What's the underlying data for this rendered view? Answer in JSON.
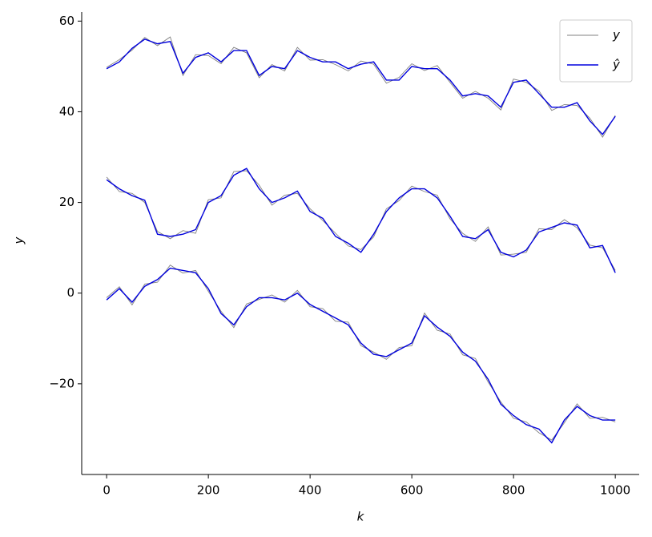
{
  "chart_data": {
    "type": "line",
    "x_label": "k",
    "y_label": "y",
    "x": [
      0,
      25,
      50,
      75,
      100,
      125,
      150,
      175,
      200,
      225,
      250,
      275,
      300,
      325,
      350,
      375,
      400,
      425,
      450,
      475,
      500,
      525,
      550,
      575,
      600,
      625,
      650,
      675,
      700,
      725,
      750,
      775,
      800,
      825,
      850,
      875,
      900,
      925,
      950,
      975,
      1000
    ],
    "series": [
      {
        "name": "y",
        "color": "#808080",
        "values": [
          [
            49.8,
            51.5,
            53.6,
            56.4,
            54.6,
            56.5,
            48.0,
            52.6,
            52.4,
            50.6,
            54.2,
            53.0,
            47.5,
            50.4,
            49.0,
            54.2,
            51.4,
            51.5,
            50.4,
            49.0,
            51.2,
            50.5,
            46.3,
            47.6,
            50.6,
            49.1,
            50.2,
            46.5,
            43.0,
            44.5,
            43.0,
            40.4,
            47.2,
            46.5,
            44.6,
            40.3,
            41.6,
            41.4,
            38.6,
            34.4,
            39.2
          ],
          [
            25.6,
            22.4,
            22.0,
            20.0,
            13.6,
            12.0,
            13.8,
            13.2,
            20.6,
            21.0,
            26.8,
            27.0,
            23.8,
            19.4,
            21.6,
            22.0,
            18.6,
            16.0,
            13.2,
            10.4,
            9.6,
            12.4,
            18.6,
            20.4,
            23.6,
            22.4,
            21.6,
            16.4,
            13.2,
            11.4,
            14.6,
            8.4,
            8.6,
            9.0,
            14.2,
            14.0,
            16.2,
            14.4,
            10.6,
            10.0,
            5.0
          ],
          [
            -1.0,
            1.4,
            -2.6,
            2.0,
            2.4,
            6.2,
            4.4,
            5.0,
            0.4,
            -4.0,
            -7.6,
            -2.4,
            -1.4,
            -0.4,
            -2.0,
            0.6,
            -3.0,
            -3.4,
            -6.2,
            -6.4,
            -11.6,
            -13.0,
            -14.6,
            -12.0,
            -11.6,
            -4.4,
            -8.2,
            -9.0,
            -13.6,
            -14.4,
            -19.6,
            -24.0,
            -27.6,
            -28.4,
            -30.8,
            -32.4,
            -28.6,
            -24.4,
            -27.6,
            -27.4,
            -28.4
          ]
        ]
      },
      {
        "name": "ŷ",
        "color": "#0000dd",
        "values": [
          [
            49.5,
            51,
            54,
            56,
            55,
            55.5,
            48.5,
            52,
            53,
            51,
            53.5,
            53.5,
            48,
            50,
            49.5,
            53.5,
            52,
            51,
            51,
            49.5,
            50.5,
            51,
            47,
            47,
            50,
            49.5,
            49.5,
            47,
            43.5,
            44,
            43.5,
            41,
            46.5,
            47,
            44,
            41,
            41,
            42,
            38,
            35,
            39
          ],
          [
            25,
            23,
            21.5,
            20.5,
            13,
            12.5,
            13,
            14,
            20,
            21.5,
            26,
            27.5,
            23,
            20,
            21,
            22.5,
            18,
            16.5,
            12.5,
            11,
            9,
            13,
            18,
            21,
            23,
            23,
            21,
            17,
            12.5,
            12,
            14,
            9,
            8,
            9.5,
            13.5,
            14.5,
            15.5,
            15,
            10,
            10.5,
            4.5
          ],
          [
            -1.5,
            1,
            -2,
            1.5,
            3,
            5.5,
            5,
            4.5,
            1,
            -4.5,
            -7,
            -3,
            -1,
            -1,
            -1.5,
            0,
            -2.5,
            -4,
            -5.5,
            -7,
            -11,
            -13.5,
            -14,
            -12.5,
            -11,
            -5,
            -7.5,
            -9.5,
            -13,
            -15,
            -19,
            -24.5,
            -27,
            -29,
            -30,
            -33,
            -28,
            -25,
            -27,
            -28,
            -28
          ]
        ]
      }
    ],
    "xlim": [
      -49,
      1047
    ],
    "ylim": [
      -40,
      62
    ],
    "xticks": [
      0,
      200,
      400,
      600,
      800,
      1000
    ],
    "yticks": [
      {
        "value": -20,
        "label": "−20"
      },
      0,
      20,
      40,
      60
    ],
    "legend": "upper right"
  }
}
